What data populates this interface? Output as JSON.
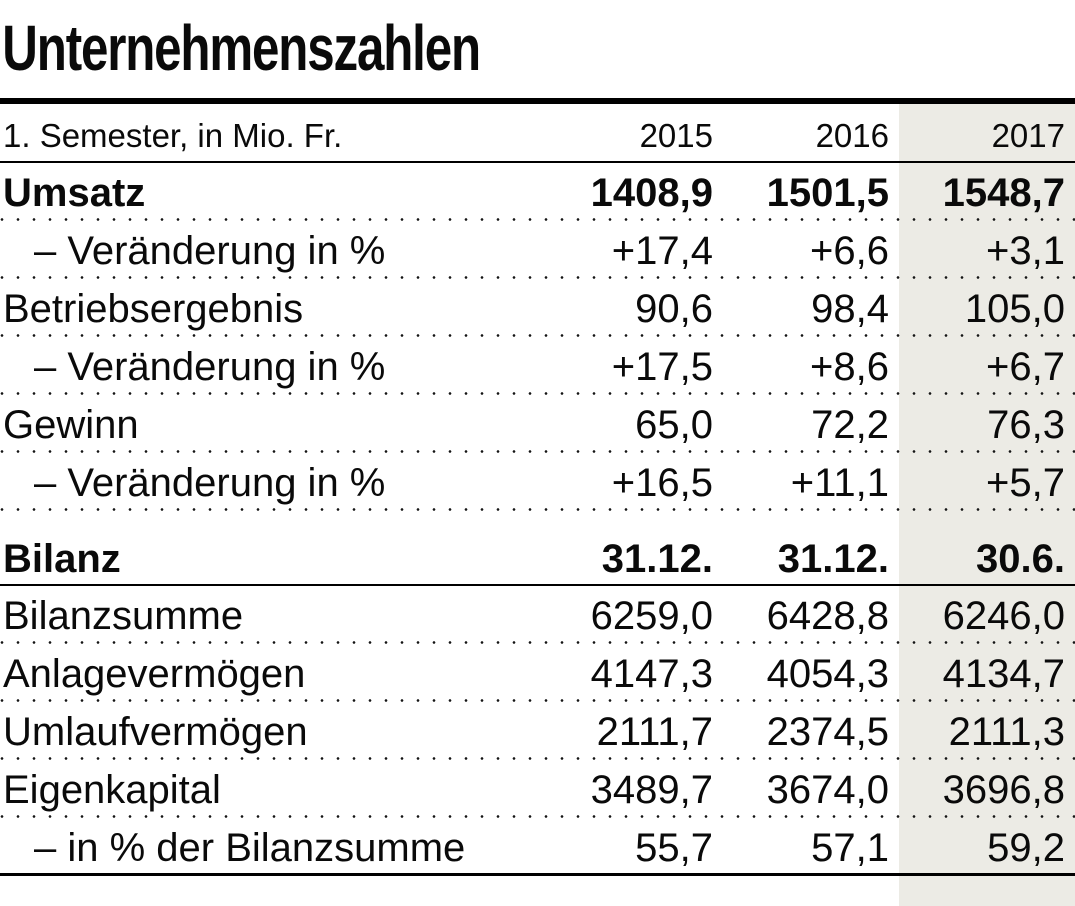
{
  "colors": {
    "highlight_column": "#ecebe5",
    "text": "#0a0a0a",
    "rule": "#000000"
  },
  "chart_data": {
    "type": "table",
    "title": "Unternehmenszahlen",
    "unit_label": "1. Semester, in Mio. Fr.",
    "columns": [
      "2015",
      "2016",
      "2017"
    ],
    "highlight_column": "2017",
    "rows": [
      {
        "label": "Umsatz",
        "values": [
          "1408,9",
          "1501,5",
          "1548,7"
        ],
        "bold": true,
        "indent": false,
        "section_header": false,
        "sep": "dotted"
      },
      {
        "label": "– Veränderung in %",
        "values": [
          "+17,4",
          "+6,6",
          "+3,1"
        ],
        "bold": false,
        "indent": true,
        "section_header": false,
        "sep": "dotted"
      },
      {
        "label": "Betriebsergebnis",
        "values": [
          "90,6",
          "98,4",
          "105,0"
        ],
        "bold": false,
        "indent": false,
        "section_header": false,
        "sep": "dotted"
      },
      {
        "label": "– Veränderung in %",
        "values": [
          "+17,5",
          "+8,6",
          "+6,7"
        ],
        "bold": false,
        "indent": true,
        "section_header": false,
        "sep": "dotted"
      },
      {
        "label": "Gewinn",
        "values": [
          "65,0",
          "72,2",
          "76,3"
        ],
        "bold": false,
        "indent": false,
        "section_header": false,
        "sep": "dotted"
      },
      {
        "label": "– Veränderung in %",
        "values": [
          "+16,5",
          "+11,1",
          "+5,7"
        ],
        "bold": false,
        "indent": true,
        "section_header": false,
        "sep": "dotted"
      },
      {
        "label": "Bilanz",
        "values": [
          "31.12.",
          "31.12.",
          "30.6."
        ],
        "bold": true,
        "indent": false,
        "section_header": true,
        "sep": "solid"
      },
      {
        "label": "Bilanzsumme",
        "values": [
          "6259,0",
          "6428,8",
          "6246,0"
        ],
        "bold": false,
        "indent": false,
        "section_header": false,
        "sep": "dotted"
      },
      {
        "label": "Anlagevermögen",
        "values": [
          "4147,3",
          "4054,3",
          "4134,7"
        ],
        "bold": false,
        "indent": false,
        "section_header": false,
        "sep": "dotted"
      },
      {
        "label": "Umlaufvermögen",
        "values": [
          "2111,7",
          "2374,5",
          "2111,3"
        ],
        "bold": false,
        "indent": false,
        "section_header": false,
        "sep": "dotted"
      },
      {
        "label": "Eigenkapital",
        "values": [
          "3489,7",
          "3674,0",
          "3696,8"
        ],
        "bold": false,
        "indent": false,
        "section_header": false,
        "sep": "dotted"
      },
      {
        "label": "– in % der Bilanzsumme",
        "values": [
          "55,7",
          "57,1",
          "59,2"
        ],
        "bold": false,
        "indent": true,
        "section_header": false,
        "sep": "bottom"
      }
    ]
  }
}
